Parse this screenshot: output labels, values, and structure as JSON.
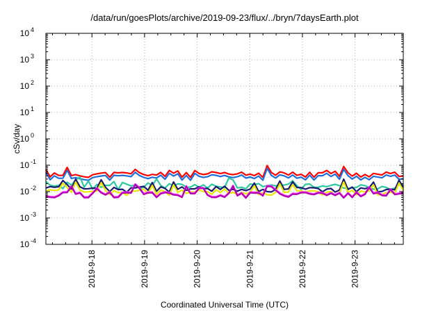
{
  "chart_data": {
    "type": "line",
    "title": "/data/run/goesPlots/archive/2019-09-23/flux/../bryn/7daysEarth.plot",
    "xlabel": "Coordinated Universal Time (UTC)",
    "ylabel": "cSv/day",
    "yscale": "log",
    "ylim": [
      0.0001,
      10000
    ],
    "xlim": [
      "2019-09-17 03:00",
      "2019-09-23 22:00"
    ],
    "y_ticks": [
      {
        "base": "10",
        "exp": "-4",
        "value": 0.0001
      },
      {
        "base": "10",
        "exp": "-3",
        "value": 0.001
      },
      {
        "base": "10",
        "exp": "-2",
        "value": 0.01
      },
      {
        "base": "10",
        "exp": "-1",
        "value": 0.1
      },
      {
        "base": "10",
        "exp": "0",
        "value": 1
      },
      {
        "base": "10",
        "exp": "1",
        "value": 10
      },
      {
        "base": "10",
        "exp": "2",
        "value": 100
      },
      {
        "base": "10",
        "exp": "3",
        "value": 1000
      },
      {
        "base": "10",
        "exp": "4",
        "value": 10000
      }
    ],
    "x_ticks": [
      "2019-9-18",
      "2019-9-19",
      "2019-9-20",
      "2019-9-21",
      "2019-9-22",
      "2019-9-23"
    ],
    "grid": true,
    "series": [
      {
        "color": "#ff0000",
        "base": 0.045,
        "amp": 1.25,
        "seed": 11
      },
      {
        "color": "#1e6fd9",
        "base": 0.035,
        "amp": 1.25,
        "seed": 11
      },
      {
        "color": "#2ec7a0",
        "base": 0.016,
        "amp": 1.35,
        "seed": 23
      },
      {
        "color": "#1a1a6e",
        "base": 0.0125,
        "amp": 1.45,
        "seed": 37
      },
      {
        "color": "#e6e600",
        "base": 0.0095,
        "amp": 1.5,
        "seed": 37
      },
      {
        "color": "#ff33ff",
        "base": 0.008,
        "amp": 1.55,
        "seed": 51
      },
      {
        "color": "#b000b0",
        "base": 0.0075,
        "amp": 1.55,
        "seed": 51
      }
    ]
  }
}
